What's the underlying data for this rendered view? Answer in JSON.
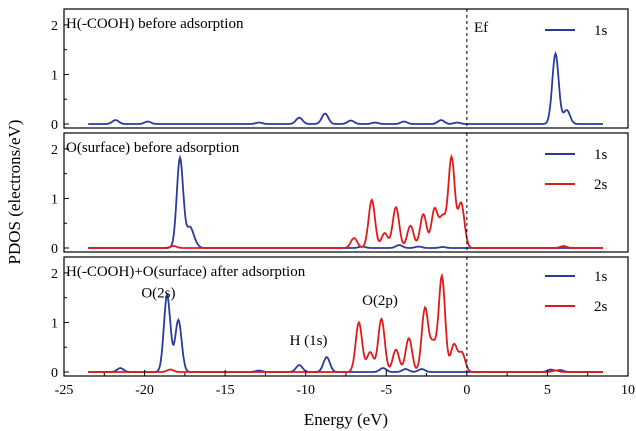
{
  "chart_data": [
    {
      "type": "line",
      "title": "H(-COOH) before adsorption",
      "xlabel": "Energy (eV)",
      "ylabel": "PDOS (electrons/eV)",
      "xlim": [
        -25,
        10
      ],
      "ylim": [
        0,
        2.2
      ],
      "x_ticks": [
        -25,
        -20,
        -15,
        -10,
        -5,
        0,
        5,
        10
      ],
      "y_ticks": [
        0,
        1,
        2
      ],
      "fermi_level": 0,
      "fermi_label": "Ef",
      "legend": "top-right",
      "series": [
        {
          "name": "1s",
          "color": "#2b3a9e",
          "peaks": [
            {
              "x": -21.8,
              "y": 0.08
            },
            {
              "x": -19.8,
              "y": 0.05
            },
            {
              "x": -12.9,
              "y": 0.03
            },
            {
              "x": -10.4,
              "y": 0.13
            },
            {
              "x": -8.8,
              "y": 0.21
            },
            {
              "x": -7.2,
              "y": 0.07
            },
            {
              "x": -5.7,
              "y": 0.03
            },
            {
              "x": -3.9,
              "y": 0.05
            },
            {
              "x": -1.6,
              "y": 0.08
            },
            {
              "x": -0.6,
              "y": 0.03
            },
            {
              "x": 5.5,
              "y": 1.42
            },
            {
              "x": 6.2,
              "y": 0.28
            }
          ]
        }
      ]
    },
    {
      "type": "line",
      "title": "O(surface) before adsorption",
      "xlim": [
        -25,
        10
      ],
      "ylim": [
        0,
        2.2
      ],
      "y_ticks": [
        0,
        1,
        2
      ],
      "fermi_level": 0,
      "legend": "top-right",
      "series": [
        {
          "name": "1s",
          "color": "#2b3a9e",
          "peaks": [
            {
              "x": -17.8,
              "y": 1.82
            },
            {
              "x": -17.2,
              "y": 0.38
            },
            {
              "x": -16.9,
              "y": 0.1
            },
            {
              "x": -6.5,
              "y": 0.03
            },
            {
              "x": -4.2,
              "y": 0.06
            },
            {
              "x": -3.0,
              "y": 0.03
            },
            {
              "x": -1.5,
              "y": 0.02
            }
          ]
        },
        {
          "name": "2s",
          "color": "#e01a1a",
          "peaks": [
            {
              "x": -18.2,
              "y": 0.04
            },
            {
              "x": -7.0,
              "y": 0.2
            },
            {
              "x": -5.9,
              "y": 0.97
            },
            {
              "x": -5.1,
              "y": 0.3
            },
            {
              "x": -4.4,
              "y": 0.82
            },
            {
              "x": -3.5,
              "y": 0.45
            },
            {
              "x": -2.7,
              "y": 0.68
            },
            {
              "x": -2.0,
              "y": 0.78
            },
            {
              "x": -1.5,
              "y": 0.6
            },
            {
              "x": -0.95,
              "y": 1.82
            },
            {
              "x": -0.35,
              "y": 0.9
            },
            {
              "x": 6.0,
              "y": 0.04
            }
          ]
        }
      ]
    },
    {
      "type": "line",
      "title": "H(-COOH)+O(surface) after adsorption",
      "xlim": [
        -25,
        10
      ],
      "ylim": [
        0,
        2.2
      ],
      "y_ticks": [
        0,
        1,
        2
      ],
      "fermi_level": 0,
      "legend": "top-right",
      "annotations": [
        {
          "text": "O(2s)",
          "x": -20.2,
          "y": 1.5
        },
        {
          "text": "H (1s)",
          "x": -11.0,
          "y": 0.55
        },
        {
          "text": "O(2p)",
          "x": -6.5,
          "y": 1.35
        }
      ],
      "series": [
        {
          "name": "1s",
          "color": "#2b3a9e",
          "peaks": [
            {
              "x": -21.5,
              "y": 0.08
            },
            {
              "x": -18.6,
              "y": 1.55
            },
            {
              "x": -17.9,
              "y": 1.05
            },
            {
              "x": -12.9,
              "y": 0.03
            },
            {
              "x": -10.4,
              "y": 0.14
            },
            {
              "x": -8.7,
              "y": 0.3
            },
            {
              "x": -5.2,
              "y": 0.08
            },
            {
              "x": -3.8,
              "y": 0.06
            },
            {
              "x": -2.8,
              "y": 0.06
            },
            {
              "x": 5.2,
              "y": 0.05
            },
            {
              "x": 5.8,
              "y": 0.04
            }
          ]
        },
        {
          "name": "2s",
          "color": "#e01a1a",
          "peaks": [
            {
              "x": -18.4,
              "y": 0.05
            },
            {
              "x": -6.7,
              "y": 1.0
            },
            {
              "x": -6.0,
              "y": 0.4
            },
            {
              "x": -5.3,
              "y": 1.07
            },
            {
              "x": -4.4,
              "y": 0.45
            },
            {
              "x": -3.6,
              "y": 0.68
            },
            {
              "x": -2.6,
              "y": 1.28
            },
            {
              "x": -2.1,
              "y": 0.55
            },
            {
              "x": -1.55,
              "y": 1.93
            },
            {
              "x": -0.8,
              "y": 0.55
            },
            {
              "x": -0.3,
              "y": 0.38
            },
            {
              "x": 5.5,
              "y": 0.03
            }
          ]
        }
      ]
    }
  ]
}
